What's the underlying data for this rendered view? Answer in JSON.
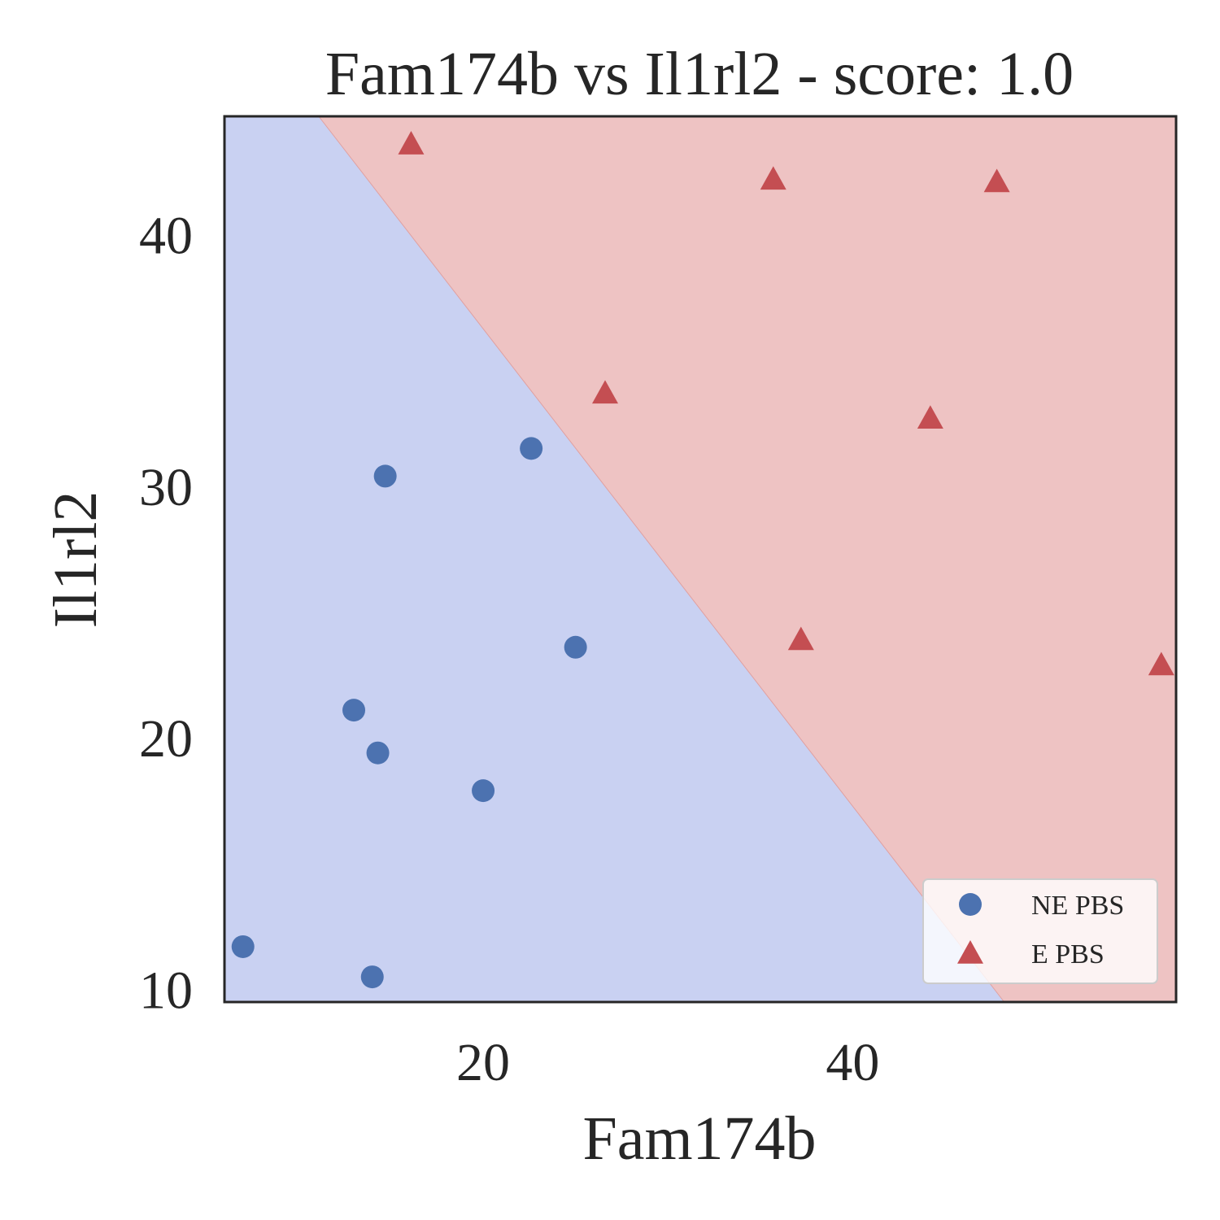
{
  "chart_data": {
    "type": "scatter",
    "title": "Fam174b vs Il1rl2 - score: 1.0",
    "xlabel": "Fam174b",
    "ylabel": "Il1rl2",
    "xlim": [
      6.0,
      57.5
    ],
    "ylim": [
      9.5,
      44.7
    ],
    "xticks": [
      20,
      40
    ],
    "yticks": [
      10,
      20,
      30,
      40
    ],
    "grid": false,
    "legend_position": "bottom-right",
    "decision_boundary": {
      "points": [
        [
          11.1,
          44.7
        ],
        [
          48.2,
          9.5
        ]
      ],
      "region_colors": {
        "NE PBS": "#c9d1f2",
        "E PBS": "#eec3c3"
      }
    },
    "series": [
      {
        "name": "NE PBS",
        "marker": "circle",
        "color": "#4c72b0",
        "points": [
          [
            7.0,
            11.7
          ],
          [
            13.0,
            21.1
          ],
          [
            14.3,
            19.4
          ],
          [
            14.7,
            30.4
          ],
          [
            14.0,
            10.5
          ],
          [
            20.0,
            17.9
          ],
          [
            22.6,
            31.5
          ],
          [
            25.0,
            23.6
          ]
        ]
      },
      {
        "name": "E PBS",
        "marker": "triangle",
        "color": "#c44e52",
        "points": [
          [
            16.1,
            43.6
          ],
          [
            26.6,
            33.7
          ],
          [
            35.7,
            42.2
          ],
          [
            37.2,
            23.9
          ],
          [
            44.2,
            32.7
          ],
          [
            47.8,
            42.1
          ],
          [
            56.7,
            22.9
          ]
        ]
      }
    ]
  }
}
